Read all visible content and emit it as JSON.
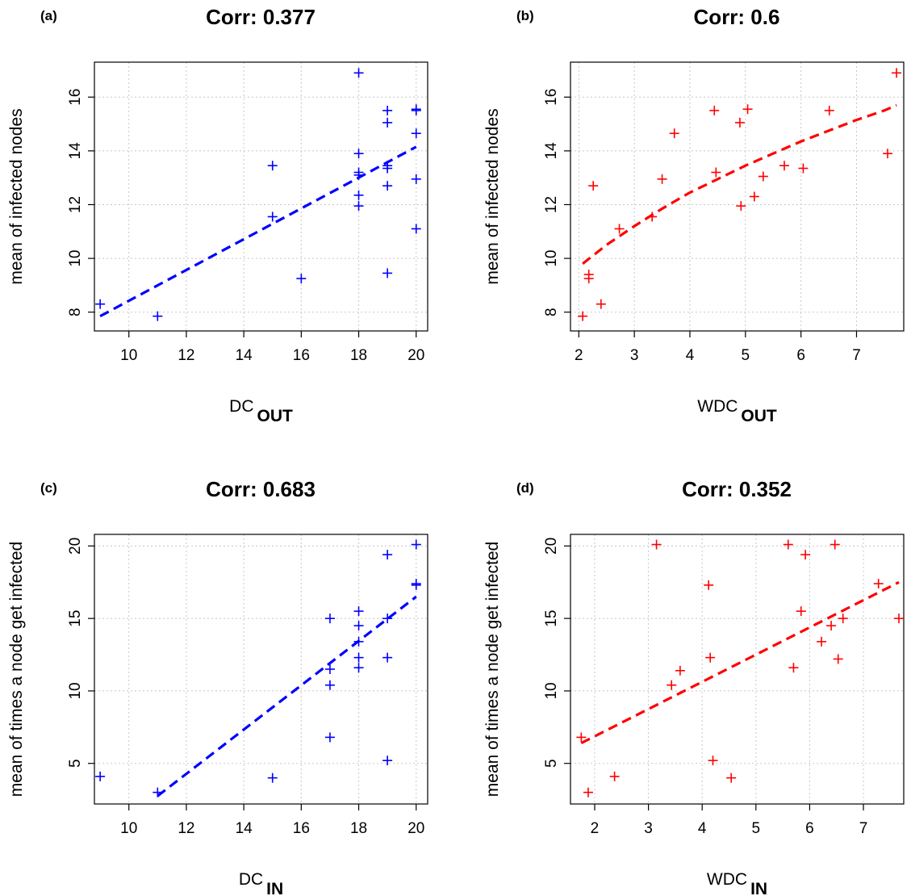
{
  "chart_data": [
    {
      "type": "scatter",
      "panel_label": "(a)",
      "title": "Corr: 0.377",
      "xlabel": "DC",
      "xlabel_sub": "OUT",
      "ylabel": "mean of infected nodes",
      "xlim": [
        8.8,
        20.4
      ],
      "ylim": [
        7.3,
        17.3
      ],
      "xticks": [
        10,
        12,
        14,
        16,
        18,
        20
      ],
      "yticks": [
        8,
        10,
        12,
        14,
        16
      ],
      "grid": true,
      "color": "#0000ff",
      "marker": "+",
      "points": [
        [
          9,
          8.3
        ],
        [
          11,
          7.85
        ],
        [
          15,
          13.45
        ],
        [
          15,
          11.55
        ],
        [
          16,
          9.25
        ],
        [
          18,
          16.9
        ],
        [
          18,
          13.9
        ],
        [
          18,
          13.2
        ],
        [
          18,
          13.1
        ],
        [
          18,
          12.35
        ],
        [
          18,
          11.95
        ],
        [
          19,
          15.5
        ],
        [
          19,
          15.05
        ],
        [
          19,
          13.45
        ],
        [
          19,
          13.35
        ],
        [
          19,
          12.7
        ],
        [
          19,
          9.45
        ],
        [
          20,
          15.55
        ],
        [
          20,
          15.5
        ],
        [
          20,
          14.65
        ],
        [
          20,
          12.95
        ],
        [
          20,
          11.1
        ]
      ],
      "fit": {
        "style": "dashed",
        "points": [
          [
            9,
            7.85
          ],
          [
            20,
            14.15
          ]
        ]
      }
    },
    {
      "type": "scatter",
      "panel_label": "(b)",
      "title": "Corr: 0.6",
      "xlabel": "WDC",
      "xlabel_sub": "OUT",
      "ylabel": "mean of infected nodes",
      "xlim": [
        1.85,
        7.85
      ],
      "ylim": [
        7.3,
        17.3
      ],
      "xticks": [
        2,
        3,
        4,
        5,
        6,
        7
      ],
      "yticks": [
        8,
        10,
        12,
        14,
        16
      ],
      "grid": true,
      "color": "#ff0000",
      "marker": "+",
      "points": [
        [
          2.07,
          7.85
        ],
        [
          2.18,
          9.4
        ],
        [
          2.18,
          9.25
        ],
        [
          2.26,
          12.7
        ],
        [
          2.4,
          8.3
        ],
        [
          2.73,
          11.1
        ],
        [
          3.32,
          11.55
        ],
        [
          3.5,
          12.95
        ],
        [
          3.72,
          14.65
        ],
        [
          4.44,
          15.5
        ],
        [
          4.47,
          13.2
        ],
        [
          4.9,
          15.05
        ],
        [
          4.92,
          11.95
        ],
        [
          5.04,
          15.55
        ],
        [
          5.16,
          12.3
        ],
        [
          5.32,
          13.05
        ],
        [
          5.7,
          13.45
        ],
        [
          6.04,
          13.35
        ],
        [
          6.51,
          15.5
        ],
        [
          7.56,
          13.9
        ],
        [
          7.72,
          16.9
        ]
      ],
      "fit": {
        "style": "dashed",
        "points": [
          [
            2.07,
            9.8
          ],
          [
            2.5,
            10.5
          ],
          [
            3,
            11.2
          ],
          [
            3.5,
            11.85
          ],
          [
            4,
            12.45
          ],
          [
            4.5,
            12.95
          ],
          [
            5,
            13.45
          ],
          [
            5.5,
            13.9
          ],
          [
            6,
            14.35
          ],
          [
            6.5,
            14.75
          ],
          [
            7,
            15.15
          ],
          [
            7.5,
            15.5
          ],
          [
            7.72,
            15.7
          ]
        ]
      }
    },
    {
      "type": "scatter",
      "panel_label": "(c)",
      "title": "Corr: 0.683",
      "xlabel": "DC",
      "xlabel_sub": "IN",
      "ylabel": "mean of times a node get infected",
      "xlim": [
        8.8,
        20.4
      ],
      "ylim": [
        2.2,
        20.8
      ],
      "xticks": [
        10,
        12,
        14,
        16,
        18,
        20
      ],
      "yticks": [
        5,
        10,
        15,
        20
      ],
      "grid": true,
      "color": "#0000ff",
      "marker": "+",
      "points": [
        [
          9,
          4.1
        ],
        [
          11,
          3.0
        ],
        [
          15,
          4.0
        ],
        [
          17,
          15.0
        ],
        [
          17,
          11.5
        ],
        [
          17,
          10.4
        ],
        [
          17,
          6.8
        ],
        [
          18,
          15.5
        ],
        [
          18,
          14.5
        ],
        [
          18,
          13.4
        ],
        [
          18,
          12.3
        ],
        [
          18,
          11.6
        ],
        [
          19,
          19.4
        ],
        [
          19,
          15.0
        ],
        [
          19,
          12.3
        ],
        [
          19,
          5.2
        ],
        [
          20,
          20.1
        ],
        [
          20,
          17.4
        ],
        [
          20,
          17.3
        ]
      ],
      "fit": {
        "style": "dashed",
        "points": [
          [
            11,
            2.75
          ],
          [
            20,
            16.5
          ]
        ]
      }
    },
    {
      "type": "scatter",
      "panel_label": "(d)",
      "title": "Corr: 0.352",
      "xlabel": "WDC",
      "xlabel_sub": "IN",
      "ylabel": "mean of times a node get infected",
      "xlim": [
        1.55,
        7.75
      ],
      "ylim": [
        2.2,
        20.8
      ],
      "xticks": [
        2,
        3,
        4,
        5,
        6,
        7
      ],
      "yticks": [
        5,
        10,
        15,
        20
      ],
      "grid": true,
      "color": "#ff0000",
      "marker": "+",
      "points": [
        [
          1.75,
          6.8
        ],
        [
          1.88,
          3.0
        ],
        [
          2.37,
          4.1
        ],
        [
          3.15,
          20.1
        ],
        [
          3.43,
          10.4
        ],
        [
          3.59,
          11.4
        ],
        [
          4.12,
          17.3
        ],
        [
          4.15,
          12.3
        ],
        [
          4.2,
          5.2
        ],
        [
          4.54,
          4.0
        ],
        [
          5.6,
          20.1
        ],
        [
          5.7,
          11.6
        ],
        [
          5.84,
          15.5
        ],
        [
          5.92,
          19.4
        ],
        [
          6.22,
          13.4
        ],
        [
          6.4,
          14.5
        ],
        [
          6.47,
          20.1
        ],
        [
          6.53,
          12.2
        ],
        [
          6.62,
          15.0
        ],
        [
          7.28,
          17.4
        ],
        [
          7.66,
          15.0
        ]
      ],
      "fit": {
        "style": "dashed",
        "points": [
          [
            1.75,
            6.4
          ],
          [
            7.66,
            17.5
          ]
        ]
      }
    }
  ]
}
